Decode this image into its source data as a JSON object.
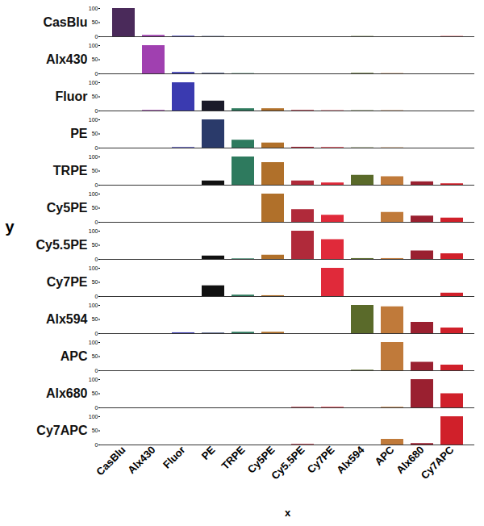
{
  "chart_data": {
    "type": "bar",
    "xlabel": "x",
    "ylabel": "y",
    "categories": [
      "CasBlu",
      "Alx430",
      "Fluor",
      "PE",
      "TRPE",
      "Cy5PE",
      "Cy5.5PE",
      "Cy7PE",
      "Alx594",
      "APC",
      "Alx680",
      "Cy7APC"
    ],
    "ylim": [
      0,
      100
    ],
    "yticks": [
      0,
      50,
      100
    ],
    "series": [
      {
        "name": "CasBlu",
        "values": [
          100,
          5,
          2,
          1,
          0,
          0,
          0,
          0,
          1,
          0,
          0,
          1
        ],
        "colors": [
          "#4a2a5a",
          "#a040b0",
          "#3a3ab0",
          "#2a3a6a",
          "#2e7a5e",
          "#b0702a",
          "#b02a3a",
          "#e02a3a",
          "#5a6a2a",
          "#c07a3a",
          "#9a2030",
          "#d0202a"
        ]
      },
      {
        "name": "Alx430",
        "values": [
          0,
          100,
          5,
          2,
          1,
          0,
          0,
          0,
          2,
          1,
          0,
          0
        ],
        "colors": [
          "#4a2a5a",
          "#a040b0",
          "#3a3ab0",
          "#2a3a6a",
          "#2e7a5e",
          "#b0702a",
          "#b02a3a",
          "#e02a3a",
          "#5a6a2a",
          "#c07a3a",
          "#9a2030",
          "#d0202a"
        ]
      },
      {
        "name": "Fluor",
        "values": [
          0,
          2,
          100,
          35,
          8,
          8,
          2,
          1,
          1,
          1,
          0,
          0
        ],
        "colors": [
          "#4a2a5a",
          "#a040b0",
          "#3a3ab0",
          "#1a1a2a",
          "#2e7a5e",
          "#b0702a",
          "#b02a3a",
          "#e02a3a",
          "#5a6a2a",
          "#c07a3a",
          "#9a2030",
          "#d0202a"
        ]
      },
      {
        "name": "PE",
        "values": [
          0,
          0,
          2,
          100,
          28,
          18,
          3,
          2,
          1,
          1,
          0,
          0
        ],
        "colors": [
          "#4a2a5a",
          "#a040b0",
          "#3a3ab0",
          "#2a3a6a",
          "#2e7a5e",
          "#b0702a",
          "#b02a3a",
          "#e02a3a",
          "#5a6a2a",
          "#c07a3a",
          "#9a2030",
          "#d0202a"
        ]
      },
      {
        "name": "TRPE",
        "values": [
          0,
          0,
          0,
          15,
          100,
          80,
          15,
          8,
          35,
          30,
          12,
          5
        ],
        "colors": [
          "#4a2a5a",
          "#a040b0",
          "#3a3ab0",
          "#111111",
          "#2e7a5e",
          "#b0702a",
          "#b02a3a",
          "#e02a3a",
          "#5a6a2a",
          "#c07a3a",
          "#9a2030",
          "#d0202a"
        ]
      },
      {
        "name": "Cy5PE",
        "values": [
          0,
          0,
          0,
          0,
          0,
          100,
          45,
          25,
          0,
          35,
          22,
          15
        ],
        "colors": [
          "#4a2a5a",
          "#a040b0",
          "#3a3ab0",
          "#2a3a6a",
          "#2e7a5e",
          "#b0702a",
          "#b02a3a",
          "#e02a3a",
          "#5a6a2a",
          "#c07a3a",
          "#9a2030",
          "#d0202a"
        ]
      },
      {
        "name": "Cy5.5PE",
        "values": [
          0,
          0,
          0,
          12,
          2,
          15,
          100,
          70,
          3,
          3,
          30,
          20
        ],
        "colors": [
          "#4a2a5a",
          "#a040b0",
          "#3a3ab0",
          "#111111",
          "#2e7a5e",
          "#b0702a",
          "#b02a3a",
          "#e02a3a",
          "#5a6a2a",
          "#c07a3a",
          "#9a2030",
          "#d0202a"
        ]
      },
      {
        "name": "Cy7PE",
        "values": [
          0,
          0,
          0,
          38,
          5,
          3,
          0,
          100,
          0,
          0,
          0,
          12
        ],
        "colors": [
          "#4a2a5a",
          "#a040b0",
          "#3a3ab0",
          "#111111",
          "#2e7a5e",
          "#b0702a",
          "#b02a3a",
          "#e02a3a",
          "#5a6a2a",
          "#c07a3a",
          "#9a2030",
          "#d0202a"
        ]
      },
      {
        "name": "Alx594",
        "values": [
          0,
          0,
          3,
          2,
          5,
          5,
          0,
          0,
          100,
          95,
          40,
          20
        ],
        "colors": [
          "#4a2a5a",
          "#a040b0",
          "#3a3ab0",
          "#2a3a6a",
          "#2e7a5e",
          "#b0702a",
          "#b02a3a",
          "#e02a3a",
          "#5a6a2a",
          "#c07a3a",
          "#9a2030",
          "#d0202a"
        ]
      },
      {
        "name": "APC",
        "values": [
          0,
          0,
          0,
          0,
          0,
          0,
          0,
          0,
          2,
          100,
          30,
          20
        ],
        "colors": [
          "#4a2a5a",
          "#a040b0",
          "#3a3ab0",
          "#2a3a6a",
          "#2e7a5e",
          "#b0702a",
          "#b02a3a",
          "#e02a3a",
          "#5a6a2a",
          "#c07a3a",
          "#9a2030",
          "#d0202a"
        ]
      },
      {
        "name": "Alx680",
        "values": [
          0,
          0,
          0,
          0,
          0,
          0,
          2,
          2,
          0,
          2,
          100,
          50
        ],
        "colors": [
          "#4a2a5a",
          "#a040b0",
          "#3a3ab0",
          "#2a3a6a",
          "#2e7a5e",
          "#b0702a",
          "#b02a3a",
          "#e02a3a",
          "#5a6a2a",
          "#c07a3a",
          "#9a2030",
          "#d0202a"
        ]
      },
      {
        "name": "Cy7APC",
        "values": [
          0,
          0,
          0,
          0,
          0,
          0,
          2,
          0,
          0,
          20,
          5,
          100
        ],
        "colors": [
          "#4a2a5a",
          "#a040b0",
          "#3a3ab0",
          "#2a3a6a",
          "#2e7a5e",
          "#b0702a",
          "#b02a3a",
          "#e02a3a",
          "#5a6a2a",
          "#c07a3a",
          "#9a2030",
          "#d0202a"
        ]
      }
    ]
  }
}
